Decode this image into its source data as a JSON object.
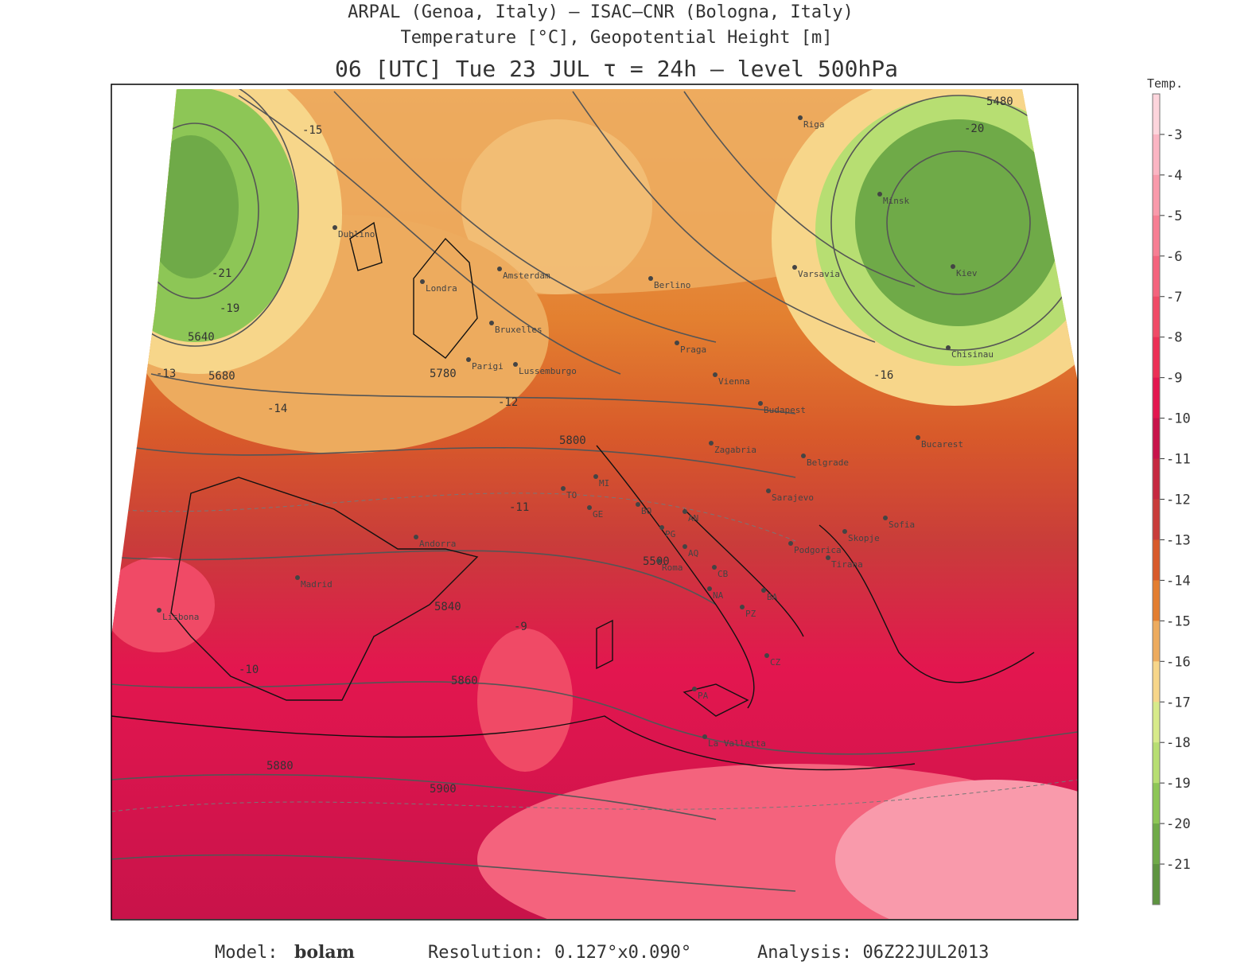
{
  "header": {
    "line1": "ARPAL (Genoa, Italy)  –  ISAC–CNR (Bologna, Italy)",
    "line2": "Temperature [°C], Geopotential Height [m]",
    "line3": "06 [UTC] Tue 23 JUL  τ = 24h  –  level 500hPa"
  },
  "colorbar": {
    "title": "Temp.",
    "colors": [
      "#fdd5dc",
      "#fbb5c3",
      "#f99aab",
      "#f77e93",
      "#f4637d",
      "#f04a66",
      "#ec2f55",
      "#e3164f",
      "#c8134a",
      "#c62840",
      "#c93c3a",
      "#d85a2a",
      "#e37e30",
      "#edab5e",
      "#f7d68a",
      "#d7ea8a",
      "#b7de72",
      "#8dc656",
      "#6faa48",
      "#5e9440"
    ],
    "labels": [
      "-3",
      "-4",
      "-5",
      "-6",
      "-7",
      "-8",
      "-9",
      "-10",
      "-11",
      "-12",
      "-13",
      "-14",
      "-15",
      "-16",
      "-17",
      "-18",
      "-19",
      "-20",
      "-21"
    ]
  },
  "cities": [
    "Dublino",
    "Londra",
    "Amsterdam",
    "Bruxelles",
    "Parigi",
    "Lussemburgo",
    "Berlino",
    "Praga",
    "Varsavia",
    "Kiev",
    "Minsk",
    "Riga",
    "Chisinau",
    "Budapest",
    "Bucarest",
    "Belgrade",
    "Sarajevo",
    "Zagabria",
    "Vienna",
    "Madrid",
    "Lisbona",
    "Andorra",
    "Roma",
    "BO",
    "MI",
    "TO",
    "GE",
    "AN",
    "PG",
    "NA",
    "BA",
    "PZ",
    "CZ",
    "PA",
    "CB",
    "AQ",
    "Sofia",
    "Skopje",
    "Tirana",
    "Podgorica",
    "La Valletta"
  ],
  "contour_labels": [
    "5480",
    "5640",
    "5680",
    "5780",
    "5800",
    "5840",
    "5860",
    "5880",
    "5900",
    "5500",
    "-15",
    "-21",
    "-19",
    "-16",
    "-13",
    "-14",
    "-12",
    "-11",
    "-10",
    "-9",
    "-20"
  ],
  "footer": {
    "model_label": "Model:",
    "model": "bolam",
    "resolution": "Resolution: 0.127°x0.090°",
    "analysis": "Analysis: 06Z22JUL2013"
  }
}
